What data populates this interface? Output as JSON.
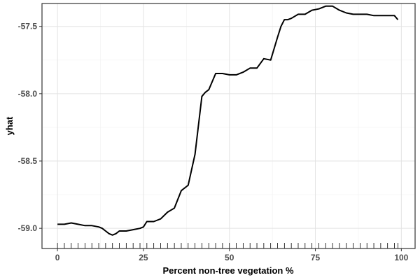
{
  "chart_data": {
    "type": "line",
    "xlabel": "Percent non-tree vegetation %",
    "ylabel": "yhat",
    "xlim": [
      -4.5,
      104
    ],
    "ylim": [
      -59.15,
      -57.33
    ],
    "x_ticks": [
      0,
      25,
      50,
      75,
      100
    ],
    "x_tick_labels": [
      "0",
      "25",
      "50",
      "75",
      "100"
    ],
    "y_ticks": [
      -59.0,
      -58.5,
      -58.0,
      -57.5
    ],
    "y_tick_labels": [
      "-59.0",
      "-58.5",
      "-58.0",
      "-57.5"
    ],
    "grid": true,
    "legend": "none",
    "line_color": "#000000",
    "series": [
      {
        "x": [
          0,
          2,
          4,
          6,
          8,
          10,
          12,
          13,
          14,
          15,
          16,
          17,
          18,
          19,
          20,
          22,
          24,
          25,
          26,
          27,
          28,
          30,
          32,
          34,
          36,
          38,
          40,
          42,
          43,
          44,
          46,
          48,
          50,
          52,
          54,
          56,
          58,
          60,
          62,
          64,
          65,
          66,
          67,
          68,
          70,
          72,
          74,
          76,
          78,
          80,
          82,
          84,
          86,
          88,
          90,
          92,
          94,
          96,
          98,
          99
        ],
        "y": [
          -58.97,
          -58.97,
          -58.96,
          -58.97,
          -58.98,
          -58.98,
          -58.99,
          -59.0,
          -59.02,
          -59.04,
          -59.05,
          -59.04,
          -59.02,
          -59.02,
          -59.02,
          -59.01,
          -59.0,
          -58.99,
          -58.95,
          -58.95,
          -58.95,
          -58.93,
          -58.88,
          -58.85,
          -58.72,
          -58.68,
          -58.45,
          -58.02,
          -57.99,
          -57.97,
          -57.85,
          -57.85,
          -57.86,
          -57.86,
          -57.84,
          -57.81,
          -57.81,
          -57.74,
          -57.75,
          -57.58,
          -57.5,
          -57.45,
          -57.45,
          -57.44,
          -57.41,
          -57.41,
          -57.38,
          -57.37,
          -57.35,
          -57.35,
          -57.38,
          -57.4,
          -57.41,
          -57.41,
          -57.41,
          -57.42,
          -57.42,
          -57.42,
          -57.42,
          -57.45
        ]
      }
    ],
    "rug_x": [
      0,
      2,
      4,
      6,
      8,
      10,
      12,
      14,
      16,
      18,
      20,
      22,
      24,
      26,
      28,
      30,
      32,
      34,
      36,
      38,
      40,
      42,
      44,
      46,
      48,
      50,
      52,
      54,
      56,
      58,
      60,
      62,
      64,
      66,
      68,
      70,
      72,
      74,
      76,
      78,
      80,
      82,
      84,
      86,
      88,
      90,
      92,
      94,
      96,
      98,
      99
    ]
  }
}
